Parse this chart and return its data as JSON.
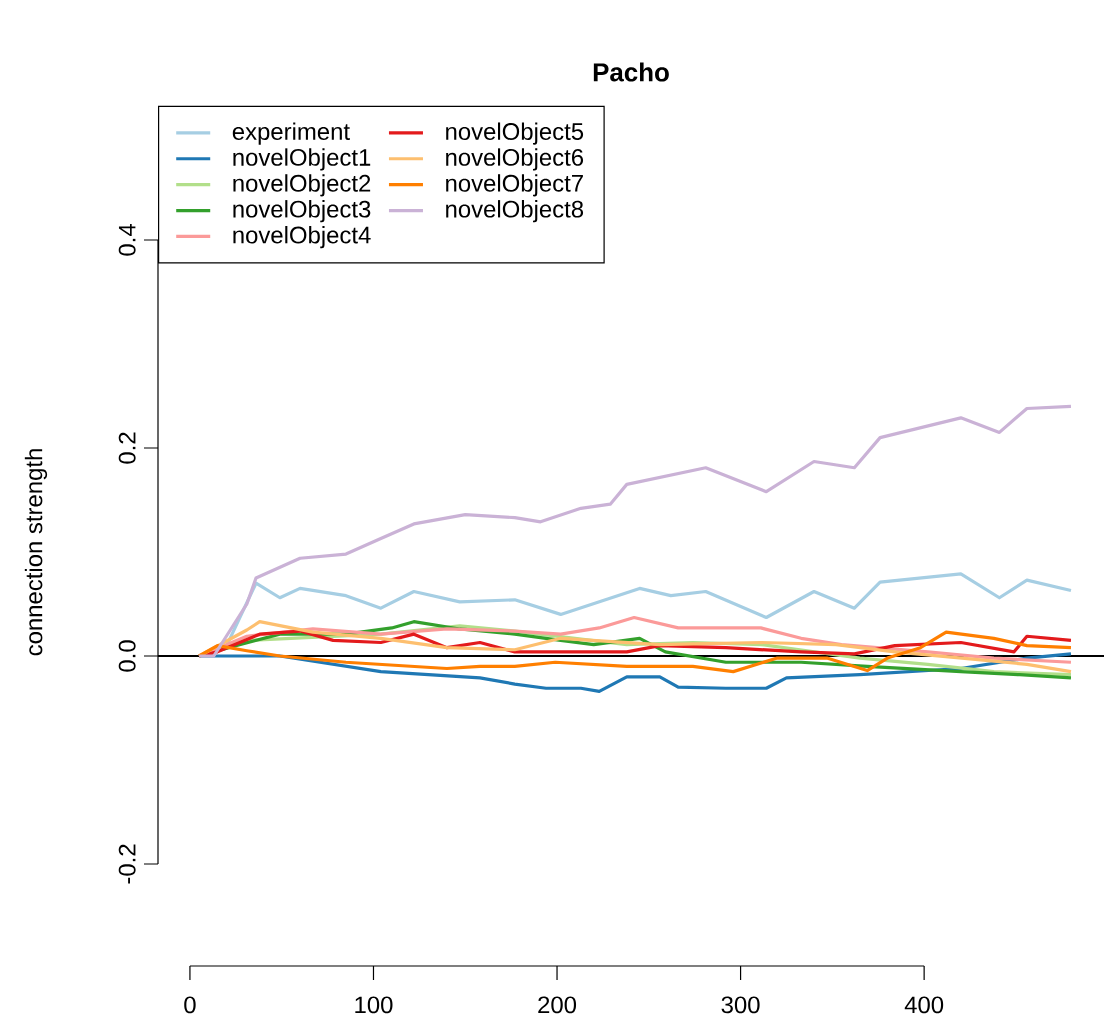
{
  "chart_data": {
    "type": "line",
    "title": "Pacho",
    "ylabel": "connection strength",
    "xlim": [
      -17.4,
      498
    ],
    "ylim": [
      -0.2,
      0.4
    ],
    "xticks": [
      0,
      100,
      200,
      300,
      400
    ],
    "yticks": [
      -0.2,
      {
        "value": 0,
        "label": "0.0"
      },
      0.2,
      0.4
    ],
    "grid": false,
    "legend": "top left",
    "line_style": "solid",
    "ref_lines": [
      {
        "axis": "y",
        "value": 0,
        "color": "#000000"
      }
    ],
    "series": [
      {
        "name": "experiment",
        "color": "#a6cee3",
        "x": [
          5,
          20,
          36,
          49,
          60,
          85,
          104,
          122,
          147,
          177,
          202,
          245,
          262,
          281,
          314,
          340,
          362,
          376,
          420,
          441,
          456,
          480
        ],
        "values": [
          0,
          0.01,
          0.07,
          0.056,
          0.065,
          0.058,
          0.046,
          0.062,
          0.052,
          0.054,
          0.04,
          0.065,
          0.058,
          0.062,
          0.037,
          0.062,
          0.046,
          0.071,
          0.079,
          0.056,
          0.073,
          0.063
        ]
      },
      {
        "name": "novelObject1",
        "color": "#1f78b4",
        "x": [
          5,
          49,
          104,
          158,
          177,
          194,
          213,
          223,
          238,
          256,
          266,
          292,
          314,
          325,
          365,
          420,
          456,
          480
        ],
        "values": [
          0,
          0,
          -0.015,
          -0.021,
          -0.027,
          -0.031,
          -0.031,
          -0.034,
          -0.02,
          -0.02,
          -0.03,
          -0.031,
          -0.031,
          -0.021,
          -0.018,
          -0.012,
          -0.002,
          0.002
        ]
      },
      {
        "name": "novelObject2",
        "color": "#b2df8a",
        "x": [
          5,
          31,
          104,
          147,
          177,
          238,
          274,
          311,
          365,
          402,
          438,
          480
        ],
        "values": [
          0,
          0.015,
          0.021,
          0.029,
          0.024,
          0.011,
          0.013,
          0.011,
          -0.002,
          -0.008,
          -0.015,
          -0.018
        ]
      },
      {
        "name": "novelObject3",
        "color": "#33a02c",
        "x": [
          5,
          25,
          49,
          85,
          110,
          122,
          147,
          177,
          202,
          220,
          245,
          259,
          292,
          333,
          369,
          420,
          452,
          480
        ],
        "values": [
          0,
          0.01,
          0.021,
          0.021,
          0.027,
          0.033,
          0.026,
          0.021,
          0.015,
          0.011,
          0.017,
          0.004,
          -0.006,
          -0.006,
          -0.01,
          -0.015,
          -0.018,
          -0.021
        ]
      },
      {
        "name": "novelObject4",
        "color": "#fb9a99",
        "x": [
          5,
          31,
          67,
          104,
          140,
          177,
          202,
          223,
          242,
          266,
          311,
          333,
          355,
          402,
          438,
          480
        ],
        "values": [
          0,
          0.019,
          0.026,
          0.021,
          0.026,
          0.024,
          0.021,
          0.027,
          0.037,
          0.027,
          0.027,
          0.017,
          0.011,
          0.004,
          -0.002,
          -0.006
        ]
      },
      {
        "name": "novelObject5",
        "color": "#e31a1c",
        "x": [
          5,
          15,
          38,
          60,
          78,
          104,
          122,
          140,
          158,
          177,
          202,
          238,
          256,
          292,
          333,
          362,
          384,
          420,
          449,
          456,
          480
        ],
        "values": [
          0,
          0.004,
          0.021,
          0.024,
          0.015,
          0.013,
          0.021,
          0.008,
          0.013,
          0.004,
          0.004,
          0.004,
          0.01,
          0.008,
          0.004,
          0.002,
          0.01,
          0.013,
          0.004,
          0.019,
          0.015
        ]
      },
      {
        "name": "novelObject6",
        "color": "#fdbf6f",
        "x": [
          5,
          31,
          38,
          67,
          104,
          140,
          177,
          202,
          256,
          311,
          352,
          384,
          420,
          456,
          480
        ],
        "values": [
          0,
          0.025,
          0.033,
          0.023,
          0.017,
          0.008,
          0.006,
          0.017,
          0.011,
          0.013,
          0.011,
          0.004,
          -0.002,
          -0.008,
          -0.015
        ]
      },
      {
        "name": "novelObject7",
        "color": "#ff7f00",
        "x": [
          5,
          15,
          31,
          49,
          85,
          140,
          158,
          177,
          199,
          238,
          274,
          296,
          320,
          347,
          369,
          380,
          398,
          412,
          438,
          456,
          480
        ],
        "values": [
          0,
          0.01,
          0.005,
          0,
          -0.006,
          -0.012,
          -0.01,
          -0.01,
          -0.006,
          -0.01,
          -0.01,
          -0.015,
          -0.002,
          -0.002,
          -0.014,
          -0.002,
          0.008,
          0.023,
          0.017,
          0.01,
          0.008
        ]
      },
      {
        "name": "novelObject8",
        "color": "#cab2d6",
        "x": [
          5,
          13,
          31,
          36,
          60,
          85,
          104,
          122,
          150,
          177,
          191,
          213,
          229,
          238,
          281,
          314,
          340,
          362,
          376,
          420,
          441,
          456,
          480
        ],
        "values": [
          0,
          0,
          0.05,
          0.075,
          0.094,
          0.098,
          0.113,
          0.127,
          0.136,
          0.133,
          0.129,
          0.142,
          0.146,
          0.165,
          0.181,
          0.158,
          0.187,
          0.181,
          0.21,
          0.229,
          0.215,
          0.238,
          0.24
        ]
      }
    ]
  }
}
